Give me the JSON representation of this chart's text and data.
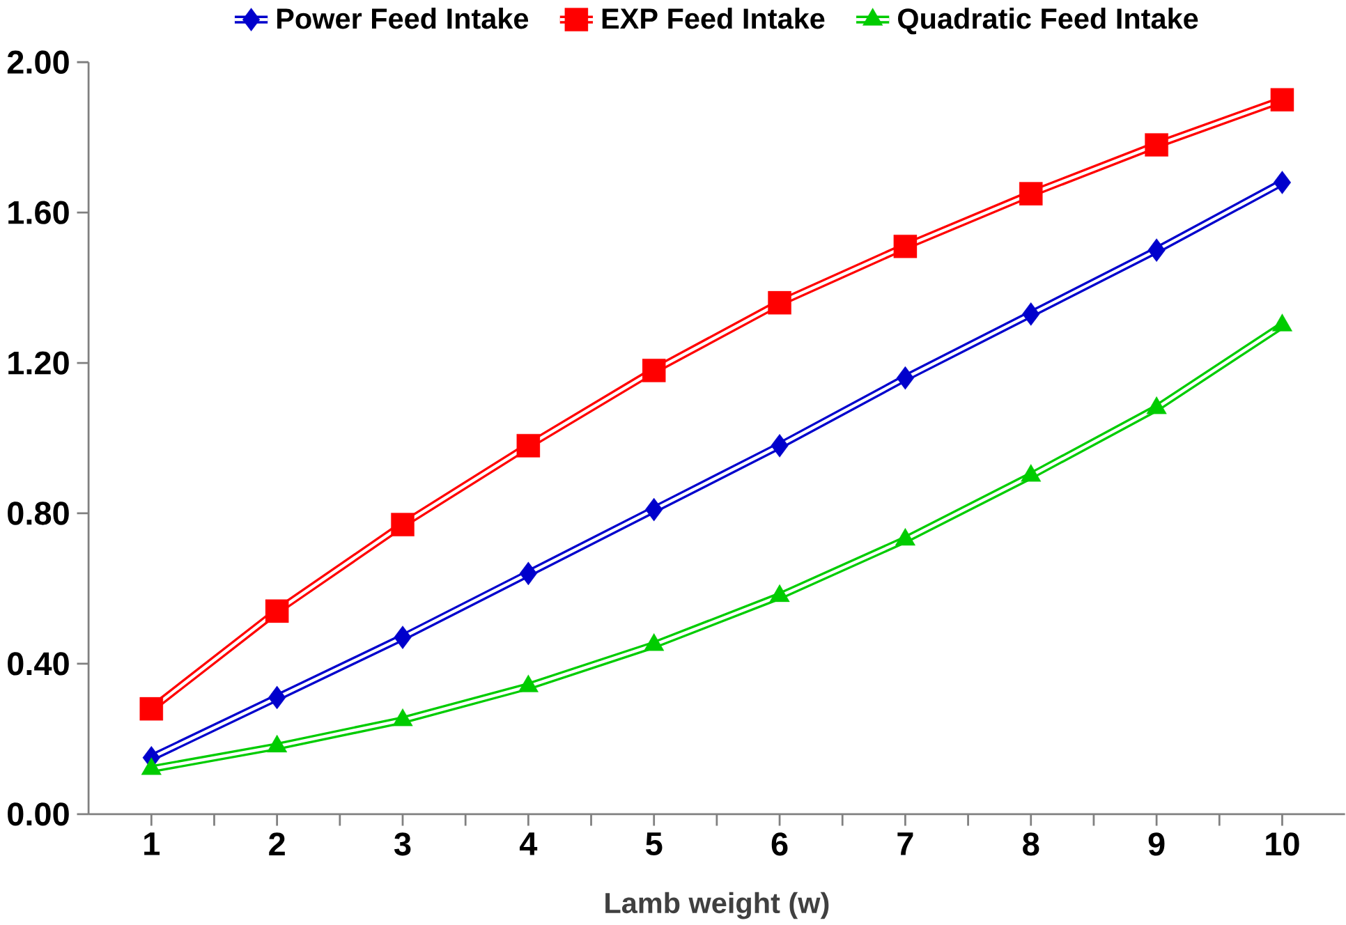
{
  "chart_data": {
    "type": "line",
    "xlabel": "Lamb weight (w)",
    "categories": [
      "1",
      "2",
      "3",
      "4",
      "5",
      "6",
      "7",
      "8",
      "9",
      "10"
    ],
    "series": [
      {
        "name": "Power Feed Intake",
        "color": "#0000cc",
        "marker": "diamond",
        "values": [
          0.15,
          0.31,
          0.47,
          0.64,
          0.81,
          0.98,
          1.16,
          1.33,
          1.5,
          1.68
        ]
      },
      {
        "name": "EXP Feed Intake",
        "color": "#ff0000",
        "marker": "square",
        "values": [
          0.28,
          0.54,
          0.77,
          0.98,
          1.18,
          1.36,
          1.51,
          1.65,
          1.78,
          1.9
        ]
      },
      {
        "name": "Quadratic Feed Intake",
        "color": "#00cc00",
        "marker": "triangle",
        "values": [
          0.12,
          0.18,
          0.25,
          0.34,
          0.45,
          0.58,
          0.73,
          0.9,
          1.08,
          1.3
        ]
      }
    ],
    "ylim": [
      0,
      2
    ],
    "yticks": [
      {
        "value": 0,
        "label": "0.00"
      },
      {
        "value": 0.4,
        "label": "0.40"
      },
      {
        "value": 0.8,
        "label": "0.80"
      },
      {
        "value": 1.2,
        "label": "1.20"
      },
      {
        "value": 1.6,
        "label": "1.60"
      },
      {
        "value": 2.0,
        "label": "2.00"
      }
    ],
    "grid": false,
    "legend": "top",
    "line_style": "solid"
  }
}
